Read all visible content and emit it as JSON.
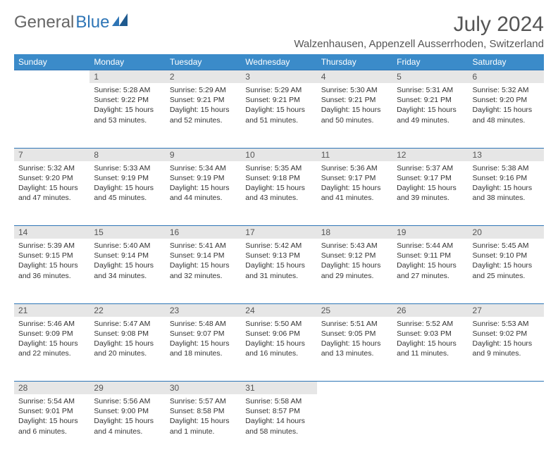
{
  "logo": {
    "part1": "General",
    "part2": "Blue"
  },
  "header": {
    "month": "July 2024",
    "location": "Walzenhausen, Appenzell Ausserrhoden, Switzerland"
  },
  "colors": {
    "header_bg": "#3b8bc9",
    "daynum_bg": "#e6e6e6",
    "rule": "#2e75b6"
  },
  "weekdays": [
    "Sunday",
    "Monday",
    "Tuesday",
    "Wednesday",
    "Thursday",
    "Friday",
    "Saturday"
  ],
  "weeks": [
    {
      "days": [
        null,
        {
          "n": "1",
          "sr": "Sunrise: 5:28 AM",
          "ss": "Sunset: 9:22 PM",
          "dl": "Daylight: 15 hours and 53 minutes."
        },
        {
          "n": "2",
          "sr": "Sunrise: 5:29 AM",
          "ss": "Sunset: 9:21 PM",
          "dl": "Daylight: 15 hours and 52 minutes."
        },
        {
          "n": "3",
          "sr": "Sunrise: 5:29 AM",
          "ss": "Sunset: 9:21 PM",
          "dl": "Daylight: 15 hours and 51 minutes."
        },
        {
          "n": "4",
          "sr": "Sunrise: 5:30 AM",
          "ss": "Sunset: 9:21 PM",
          "dl": "Daylight: 15 hours and 50 minutes."
        },
        {
          "n": "5",
          "sr": "Sunrise: 5:31 AM",
          "ss": "Sunset: 9:21 PM",
          "dl": "Daylight: 15 hours and 49 minutes."
        },
        {
          "n": "6",
          "sr": "Sunrise: 5:32 AM",
          "ss": "Sunset: 9:20 PM",
          "dl": "Daylight: 15 hours and 48 minutes."
        }
      ]
    },
    {
      "days": [
        {
          "n": "7",
          "sr": "Sunrise: 5:32 AM",
          "ss": "Sunset: 9:20 PM",
          "dl": "Daylight: 15 hours and 47 minutes."
        },
        {
          "n": "8",
          "sr": "Sunrise: 5:33 AM",
          "ss": "Sunset: 9:19 PM",
          "dl": "Daylight: 15 hours and 45 minutes."
        },
        {
          "n": "9",
          "sr": "Sunrise: 5:34 AM",
          "ss": "Sunset: 9:19 PM",
          "dl": "Daylight: 15 hours and 44 minutes."
        },
        {
          "n": "10",
          "sr": "Sunrise: 5:35 AM",
          "ss": "Sunset: 9:18 PM",
          "dl": "Daylight: 15 hours and 43 minutes."
        },
        {
          "n": "11",
          "sr": "Sunrise: 5:36 AM",
          "ss": "Sunset: 9:17 PM",
          "dl": "Daylight: 15 hours and 41 minutes."
        },
        {
          "n": "12",
          "sr": "Sunrise: 5:37 AM",
          "ss": "Sunset: 9:17 PM",
          "dl": "Daylight: 15 hours and 39 minutes."
        },
        {
          "n": "13",
          "sr": "Sunrise: 5:38 AM",
          "ss": "Sunset: 9:16 PM",
          "dl": "Daylight: 15 hours and 38 minutes."
        }
      ]
    },
    {
      "days": [
        {
          "n": "14",
          "sr": "Sunrise: 5:39 AM",
          "ss": "Sunset: 9:15 PM",
          "dl": "Daylight: 15 hours and 36 minutes."
        },
        {
          "n": "15",
          "sr": "Sunrise: 5:40 AM",
          "ss": "Sunset: 9:14 PM",
          "dl": "Daylight: 15 hours and 34 minutes."
        },
        {
          "n": "16",
          "sr": "Sunrise: 5:41 AM",
          "ss": "Sunset: 9:14 PM",
          "dl": "Daylight: 15 hours and 32 minutes."
        },
        {
          "n": "17",
          "sr": "Sunrise: 5:42 AM",
          "ss": "Sunset: 9:13 PM",
          "dl": "Daylight: 15 hours and 31 minutes."
        },
        {
          "n": "18",
          "sr": "Sunrise: 5:43 AM",
          "ss": "Sunset: 9:12 PM",
          "dl": "Daylight: 15 hours and 29 minutes."
        },
        {
          "n": "19",
          "sr": "Sunrise: 5:44 AM",
          "ss": "Sunset: 9:11 PM",
          "dl": "Daylight: 15 hours and 27 minutes."
        },
        {
          "n": "20",
          "sr": "Sunrise: 5:45 AM",
          "ss": "Sunset: 9:10 PM",
          "dl": "Daylight: 15 hours and 25 minutes."
        }
      ]
    },
    {
      "days": [
        {
          "n": "21",
          "sr": "Sunrise: 5:46 AM",
          "ss": "Sunset: 9:09 PM",
          "dl": "Daylight: 15 hours and 22 minutes."
        },
        {
          "n": "22",
          "sr": "Sunrise: 5:47 AM",
          "ss": "Sunset: 9:08 PM",
          "dl": "Daylight: 15 hours and 20 minutes."
        },
        {
          "n": "23",
          "sr": "Sunrise: 5:48 AM",
          "ss": "Sunset: 9:07 PM",
          "dl": "Daylight: 15 hours and 18 minutes."
        },
        {
          "n": "24",
          "sr": "Sunrise: 5:50 AM",
          "ss": "Sunset: 9:06 PM",
          "dl": "Daylight: 15 hours and 16 minutes."
        },
        {
          "n": "25",
          "sr": "Sunrise: 5:51 AM",
          "ss": "Sunset: 9:05 PM",
          "dl": "Daylight: 15 hours and 13 minutes."
        },
        {
          "n": "26",
          "sr": "Sunrise: 5:52 AM",
          "ss": "Sunset: 9:03 PM",
          "dl": "Daylight: 15 hours and 11 minutes."
        },
        {
          "n": "27",
          "sr": "Sunrise: 5:53 AM",
          "ss": "Sunset: 9:02 PM",
          "dl": "Daylight: 15 hours and 9 minutes."
        }
      ]
    },
    {
      "days": [
        {
          "n": "28",
          "sr": "Sunrise: 5:54 AM",
          "ss": "Sunset: 9:01 PM",
          "dl": "Daylight: 15 hours and 6 minutes."
        },
        {
          "n": "29",
          "sr": "Sunrise: 5:56 AM",
          "ss": "Sunset: 9:00 PM",
          "dl": "Daylight: 15 hours and 4 minutes."
        },
        {
          "n": "30",
          "sr": "Sunrise: 5:57 AM",
          "ss": "Sunset: 8:58 PM",
          "dl": "Daylight: 15 hours and 1 minute."
        },
        {
          "n": "31",
          "sr": "Sunrise: 5:58 AM",
          "ss": "Sunset: 8:57 PM",
          "dl": "Daylight: 14 hours and 58 minutes."
        },
        null,
        null,
        null
      ]
    }
  ]
}
